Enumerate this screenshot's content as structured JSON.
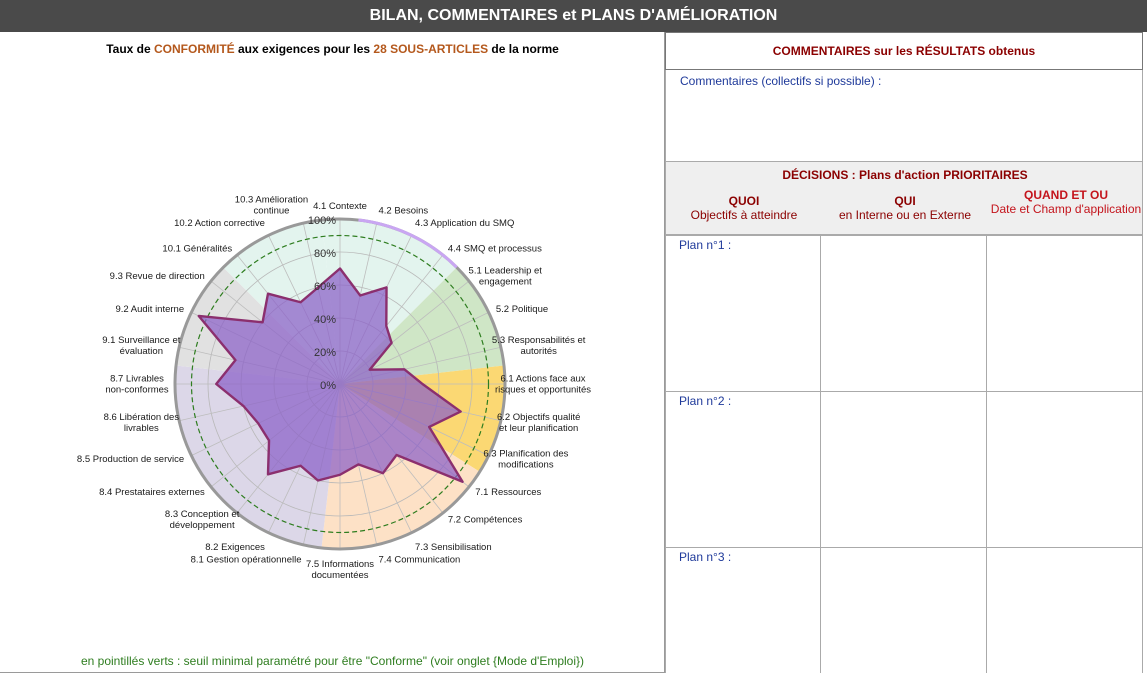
{
  "header": {
    "title": "BILAN, COMMENTAIRES et PLANS D'AMÉLIORATION"
  },
  "chart_title": {
    "part1": "Taux de ",
    "hl1": "CONFORMITÉ",
    "part2": " aux exigences pour les ",
    "hl2": "28 SOUS-ARTICLES",
    "part3": " de la norme"
  },
  "footnote": "en pointillés verts : seuil minimal paramétré pour être \"Conforme\" (voir onglet {Mode d'Emploi})",
  "comments": {
    "header": "COMMENTAIRES sur les RÉSULTATS obtenus",
    "label": "Commentaires (collectifs si possible)  :"
  },
  "decisions": {
    "title": "DÉCISIONS : Plans d'action PRIORITAIRES",
    "columns": [
      {
        "main": "QUOI",
        "sub": "Objectifs à atteindre"
      },
      {
        "main": "QUI",
        "sub": "en Interne ou en Externe"
      },
      {
        "main": "QUAND ET OU",
        "sub": "Date et Champ d'application"
      }
    ],
    "plans": [
      "Plan n°1 :",
      "Plan n°2 :",
      "Plan n°3 :"
    ]
  },
  "colors": {
    "series_line": "#8b2f6e",
    "series_fill": "#8a5fc8",
    "threshold": "#2e7d1f",
    "grid_ring": "#999999"
  },
  "chart_data": {
    "type": "radar",
    "scale": {
      "min": 0,
      "max": 100,
      "step": 20
    },
    "tick_labels": [
      "0%",
      "20%",
      "40%",
      "60%",
      "80%",
      "100%"
    ],
    "threshold": 90,
    "categories": [
      "4.1 Contexte",
      "4.2 Besoins",
      "4.3 Application du SMQ",
      "4.4 SMQ et processus",
      "5.1 Leadership et engagement",
      "5.2 Politique",
      "5.3 Responsabilités et autorités",
      "6.1 Actions face aux risques et opportunités",
      "6.2 Objectifs qualité et leur planification",
      "6.3 Planification des modifications",
      "7.1 Ressources",
      "7.2 Compétences",
      "7.3 Sensibilisation",
      "7.4 Communication",
      "7.5 Informations documentées",
      "8.1 Gestion opérationnelle",
      "8.2 Exigences",
      "8.3 Conception et développement",
      "8.4 Prestataires externes",
      "8.5 Production de service",
      "8.6 Libération des livrables",
      "8.7 Livrables non-conformes",
      "9.1 Surveillance et évaluation",
      "9.2 Audit interne",
      "9.3 Revue de direction",
      "10.1 Généralités",
      "10.2 Action corrective",
      "10.3  Amélioration continue"
    ],
    "values": [
      70,
      55,
      65,
      45,
      40,
      20,
      40,
      50,
      75,
      60,
      95,
      55,
      60,
      50,
      55,
      60,
      55,
      70,
      55,
      55,
      60,
      75,
      65,
      95,
      60,
      70,
      55,
      60
    ],
    "sectors": [
      {
        "from": 0,
        "to": 3,
        "color": "#e3f4ee"
      },
      {
        "from": 4,
        "to": 6,
        "color": "#cfe6c6"
      },
      {
        "from": 7,
        "to": 9,
        "color": "#fbd873"
      },
      {
        "from": 10,
        "to": 14,
        "color": "#fde1c6"
      },
      {
        "from": 15,
        "to": 21,
        "color": "#dcd7e8"
      },
      {
        "from": 22,
        "to": 24,
        "color": "#e1e1e1"
      },
      {
        "from": 25,
        "to": 27,
        "color": "#e3f4ee"
      }
    ],
    "highlight_arc": {
      "from": 1,
      "to": 3,
      "color": "#c9a6f2"
    }
  }
}
